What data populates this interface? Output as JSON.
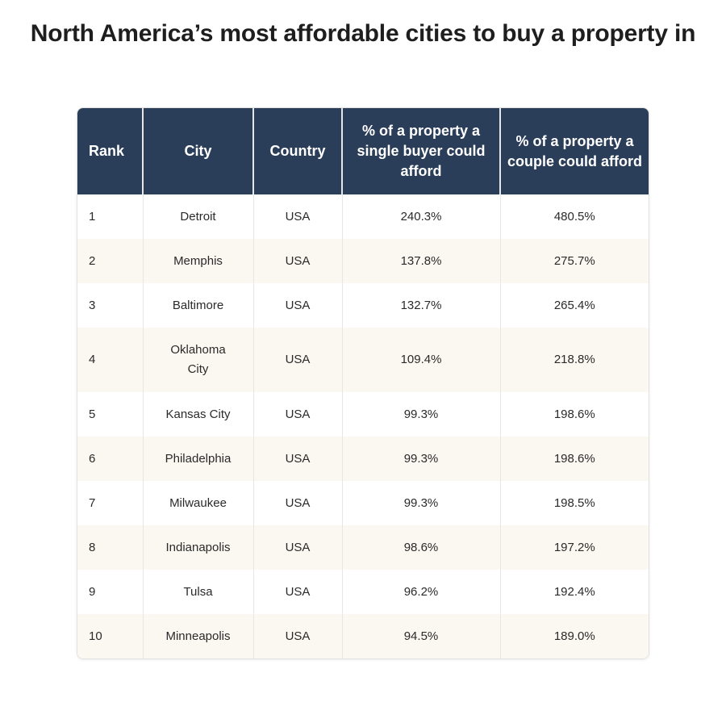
{
  "title": "North America’s most affordable cities to buy a property in",
  "table": {
    "headers": [
      "Rank",
      "City",
      "Country",
      "% of a property a single buyer could afford",
      "% of a property a couple could afford"
    ],
    "rows": [
      [
        "1",
        "Detroit",
        "USA",
        "240.3%",
        "480.5%"
      ],
      [
        "2",
        "Memphis",
        "USA",
        "137.8%",
        "275.7%"
      ],
      [
        "3",
        "Baltimore",
        "USA",
        "132.7%",
        "265.4%"
      ],
      [
        "4",
        "Oklahoma City",
        "USA",
        "109.4%",
        "218.8%"
      ],
      [
        "5",
        "Kansas City",
        "USA",
        "99.3%",
        "198.6%"
      ],
      [
        "6",
        "Philadelphia",
        "USA",
        "99.3%",
        "198.6%"
      ],
      [
        "7",
        "Milwaukee",
        "USA",
        "99.3%",
        "198.5%"
      ],
      [
        "8",
        "Indianapolis",
        "USA",
        "98.6%",
        "197.2%"
      ],
      [
        "9",
        "Tulsa",
        "USA",
        "96.2%",
        "192.4%"
      ],
      [
        "10",
        "Minneapolis",
        "USA",
        "94.5%",
        "189.0%"
      ]
    ]
  },
  "colors": {
    "header_bg": "#2b3e59",
    "header_text": "#ffffff",
    "alt_row_bg": "#fbf8f1"
  }
}
